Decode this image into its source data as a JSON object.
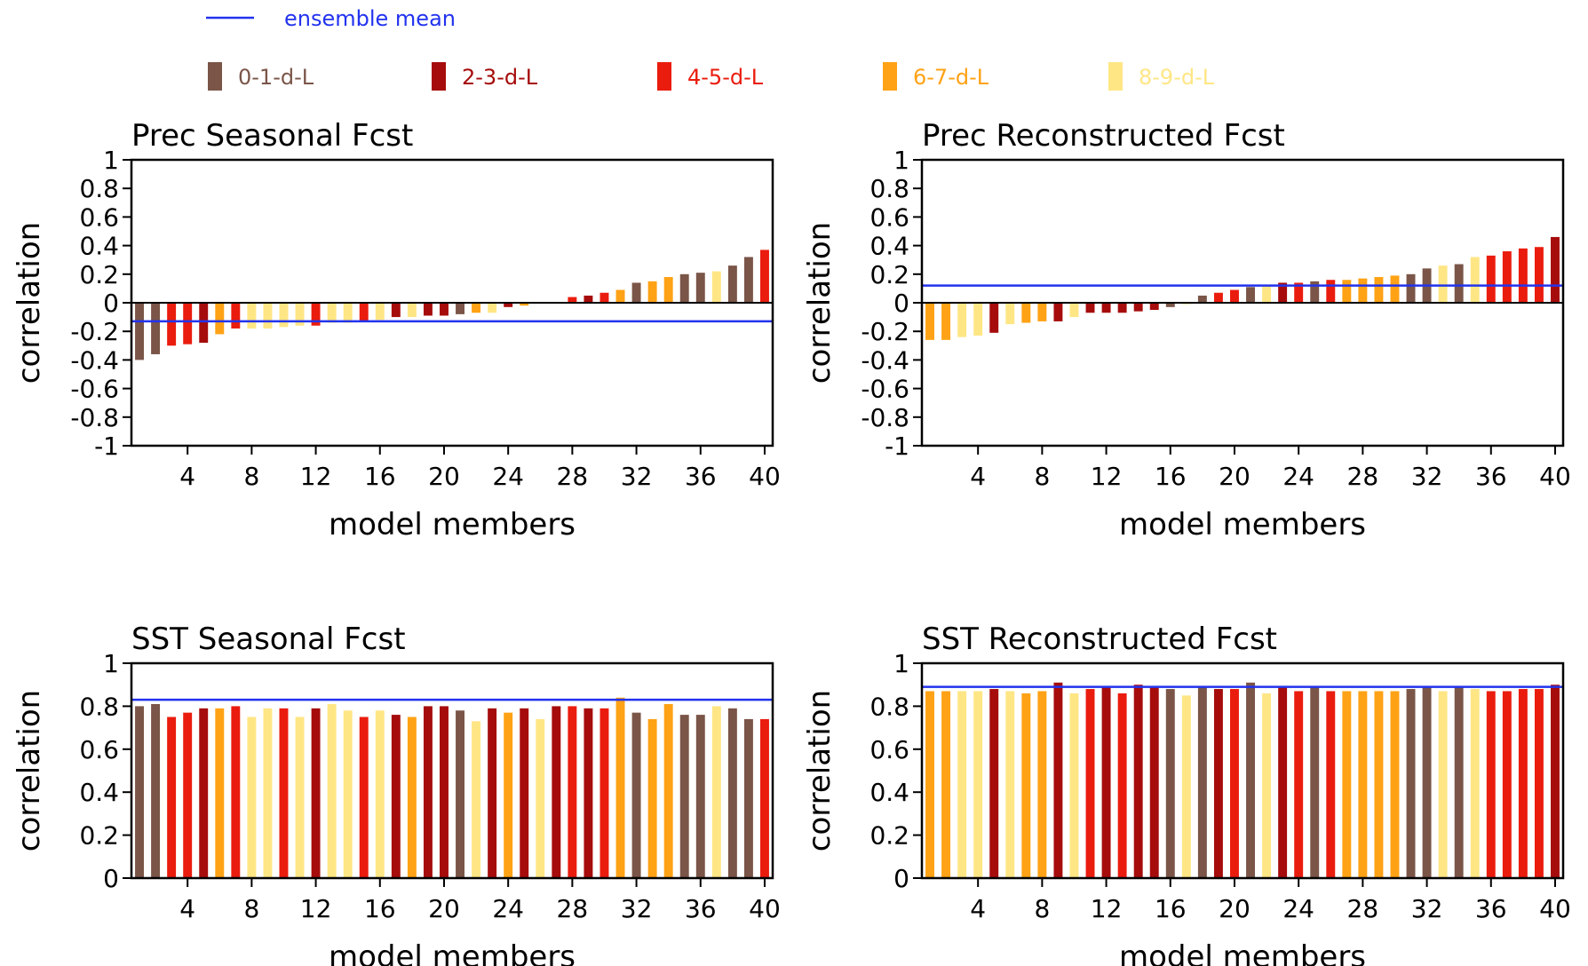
{
  "legend": {
    "mean_line": {
      "label": "ensemble mean",
      "color": "#2233ee"
    },
    "groups": [
      {
        "key": "g0",
        "label": "0-1-d-L",
        "color": "#7a5548"
      },
      {
        "key": "g1",
        "label": "2-3-d-L",
        "color": "#a60c0c"
      },
      {
        "key": "g2",
        "label": "4-5-d-L",
        "color": "#ea1c0e"
      },
      {
        "key": "g3",
        "label": "6-7-d-L",
        "color": "#ffa215"
      },
      {
        "key": "g4",
        "label": "8-9-d-L",
        "color": "#ffe685"
      }
    ]
  },
  "chart_data": [
    {
      "type": "bar",
      "title": "Prec Seasonal Fcst",
      "xlabel": "model members",
      "ylabel": "correlation",
      "ylim": [
        -1,
        1
      ],
      "yticks": [
        "1",
        "0.8",
        "0.6",
        "0.4",
        "0.2",
        "0",
        "-0.2",
        "-0.4",
        "-0.6",
        "-0.8",
        "-1"
      ],
      "ytick_values": [
        1,
        0.8,
        0.6,
        0.4,
        0.2,
        0,
        -0.2,
        -0.4,
        -0.6,
        -0.8,
        -1
      ],
      "xticks": [
        "4",
        "8",
        "12",
        "16",
        "20",
        "24",
        "28",
        "32",
        "36",
        "40"
      ],
      "xtick_values": [
        4,
        8,
        12,
        16,
        20,
        24,
        28,
        32,
        36,
        40
      ],
      "xlim": [
        1,
        40
      ],
      "ensemble_mean": -0.13,
      "bar_groups": [
        "g0",
        "g0",
        "g2",
        "g2",
        "g1",
        "g3",
        "g2",
        "g4",
        "g4",
        "g4",
        "g4",
        "g2",
        "g4",
        "g4",
        "g2",
        "g4",
        "g1",
        "g4",
        "g1",
        "g1",
        "g0",
        "g3",
        "g4",
        "g1",
        "g3",
        "g1",
        "g1",
        "g2",
        "g1",
        "g2",
        "g3",
        "g0",
        "g3",
        "g3",
        "g0",
        "g0",
        "g4",
        "g0",
        "g0",
        "g2"
      ],
      "values": [
        -0.4,
        -0.36,
        -0.3,
        -0.29,
        -0.28,
        -0.22,
        -0.18,
        -0.18,
        -0.18,
        -0.17,
        -0.16,
        -0.16,
        -0.14,
        -0.14,
        -0.13,
        -0.12,
        -0.1,
        -0.1,
        -0.09,
        -0.09,
        -0.08,
        -0.07,
        -0.07,
        -0.03,
        -0.02,
        0.0,
        0.0,
        0.04,
        0.05,
        0.07,
        0.09,
        0.14,
        0.15,
        0.18,
        0.2,
        0.21,
        0.22,
        0.26,
        0.32,
        0.37
      ]
    },
    {
      "type": "bar",
      "title": "Prec Reconstructed Fcst",
      "xlabel": "model members",
      "ylabel": "correlation",
      "ylim": [
        -1,
        1
      ],
      "yticks": [
        "1",
        "0.8",
        "0.6",
        "0.4",
        "0.2",
        "0",
        "-0.2",
        "-0.4",
        "-0.6",
        "-0.8",
        "-1"
      ],
      "ytick_values": [
        1,
        0.8,
        0.6,
        0.4,
        0.2,
        0,
        -0.2,
        -0.4,
        -0.6,
        -0.8,
        -1
      ],
      "xticks": [
        "4",
        "8",
        "12",
        "16",
        "20",
        "24",
        "28",
        "32",
        "36",
        "40"
      ],
      "xtick_values": [
        4,
        8,
        12,
        16,
        20,
        24,
        28,
        32,
        36,
        40
      ],
      "xlim": [
        1,
        40
      ],
      "ensemble_mean": 0.12,
      "bar_groups": [
        "g3",
        "g3",
        "g4",
        "g4",
        "g1",
        "g4",
        "g3",
        "g3",
        "g1",
        "g4",
        "g1",
        "g1",
        "g1",
        "g1",
        "g1",
        "g0",
        "g4",
        "g0",
        "g2",
        "g2",
        "g0",
        "g4",
        "g1",
        "g2",
        "g0",
        "g2",
        "g3",
        "g3",
        "g3",
        "g3",
        "g0",
        "g0",
        "g4",
        "g0",
        "g4",
        "g2",
        "g2",
        "g2",
        "g2",
        "g1"
      ],
      "values": [
        -0.26,
        -0.26,
        -0.24,
        -0.23,
        -0.21,
        -0.15,
        -0.14,
        -0.13,
        -0.13,
        -0.1,
        -0.07,
        -0.07,
        -0.07,
        -0.06,
        -0.05,
        -0.03,
        -0.01,
        0.05,
        0.07,
        0.09,
        0.11,
        0.12,
        0.14,
        0.14,
        0.15,
        0.16,
        0.16,
        0.17,
        0.18,
        0.19,
        0.2,
        0.24,
        0.26,
        0.27,
        0.32,
        0.33,
        0.36,
        0.38,
        0.39,
        0.46
      ]
    },
    {
      "type": "bar",
      "title": "SST Seasonal Fcst",
      "xlabel": "model members",
      "ylabel": "correlation",
      "ylim": [
        0,
        1
      ],
      "yticks": [
        "1",
        "0.8",
        "0.6",
        "0.4",
        "0.2",
        "0"
      ],
      "ytick_values": [
        1,
        0.8,
        0.6,
        0.4,
        0.2,
        0
      ],
      "xticks": [
        "4",
        "8",
        "12",
        "16",
        "20",
        "24",
        "28",
        "32",
        "36",
        "40"
      ],
      "xtick_values": [
        4,
        8,
        12,
        16,
        20,
        24,
        28,
        32,
        36,
        40
      ],
      "xlim": [
        1,
        40
      ],
      "ensemble_mean": 0.83,
      "bar_groups": [
        "g0",
        "g0",
        "g2",
        "g2",
        "g1",
        "g3",
        "g2",
        "g4",
        "g4",
        "g2",
        "g4",
        "g1",
        "g4",
        "g4",
        "g2",
        "g4",
        "g1",
        "g3",
        "g1",
        "g1",
        "g0",
        "g4",
        "g1",
        "g3",
        "g1",
        "g4",
        "g1",
        "g2",
        "g1",
        "g2",
        "g3",
        "g0",
        "g3",
        "g3",
        "g0",
        "g0",
        "g4",
        "g0",
        "g0",
        "g2"
      ],
      "values": [
        0.8,
        0.81,
        0.75,
        0.77,
        0.79,
        0.79,
        0.8,
        0.75,
        0.79,
        0.79,
        0.75,
        0.79,
        0.81,
        0.78,
        0.75,
        0.78,
        0.76,
        0.75,
        0.8,
        0.8,
        0.78,
        0.73,
        0.79,
        0.77,
        0.79,
        0.74,
        0.8,
        0.8,
        0.79,
        0.79,
        0.84,
        0.77,
        0.74,
        0.81,
        0.76,
        0.76,
        0.8,
        0.79,
        0.74,
        0.74
      ]
    },
    {
      "type": "bar",
      "title": "SST Reconstructed Fcst",
      "xlabel": "model members",
      "ylabel": "correlation",
      "ylim": [
        0,
        1
      ],
      "yticks": [
        "1",
        "0.8",
        "0.6",
        "0.4",
        "0.2",
        "0"
      ],
      "ytick_values": [
        1,
        0.8,
        0.6,
        0.4,
        0.2,
        0
      ],
      "xticks": [
        "4",
        "8",
        "12",
        "16",
        "20",
        "24",
        "28",
        "32",
        "36",
        "40"
      ],
      "xtick_values": [
        4,
        8,
        12,
        16,
        20,
        24,
        28,
        32,
        36,
        40
      ],
      "xlim": [
        1,
        40
      ],
      "ensemble_mean": 0.89,
      "bar_groups": [
        "g3",
        "g3",
        "g4",
        "g4",
        "g1",
        "g4",
        "g3",
        "g3",
        "g1",
        "g4",
        "g2",
        "g1",
        "g2",
        "g1",
        "g1",
        "g0",
        "g4",
        "g0",
        "g1",
        "g2",
        "g0",
        "g4",
        "g1",
        "g2",
        "g0",
        "g2",
        "g3",
        "g3",
        "g3",
        "g3",
        "g0",
        "g0",
        "g4",
        "g0",
        "g4",
        "g2",
        "g2",
        "g2",
        "g2",
        "g1"
      ],
      "values": [
        0.87,
        0.87,
        0.87,
        0.87,
        0.88,
        0.87,
        0.86,
        0.87,
        0.91,
        0.86,
        0.88,
        0.89,
        0.86,
        0.9,
        0.89,
        0.88,
        0.85,
        0.89,
        0.88,
        0.88,
        0.91,
        0.86,
        0.89,
        0.87,
        0.89,
        0.87,
        0.87,
        0.87,
        0.87,
        0.87,
        0.88,
        0.89,
        0.87,
        0.89,
        0.88,
        0.87,
        0.87,
        0.88,
        0.88,
        0.9
      ]
    }
  ]
}
